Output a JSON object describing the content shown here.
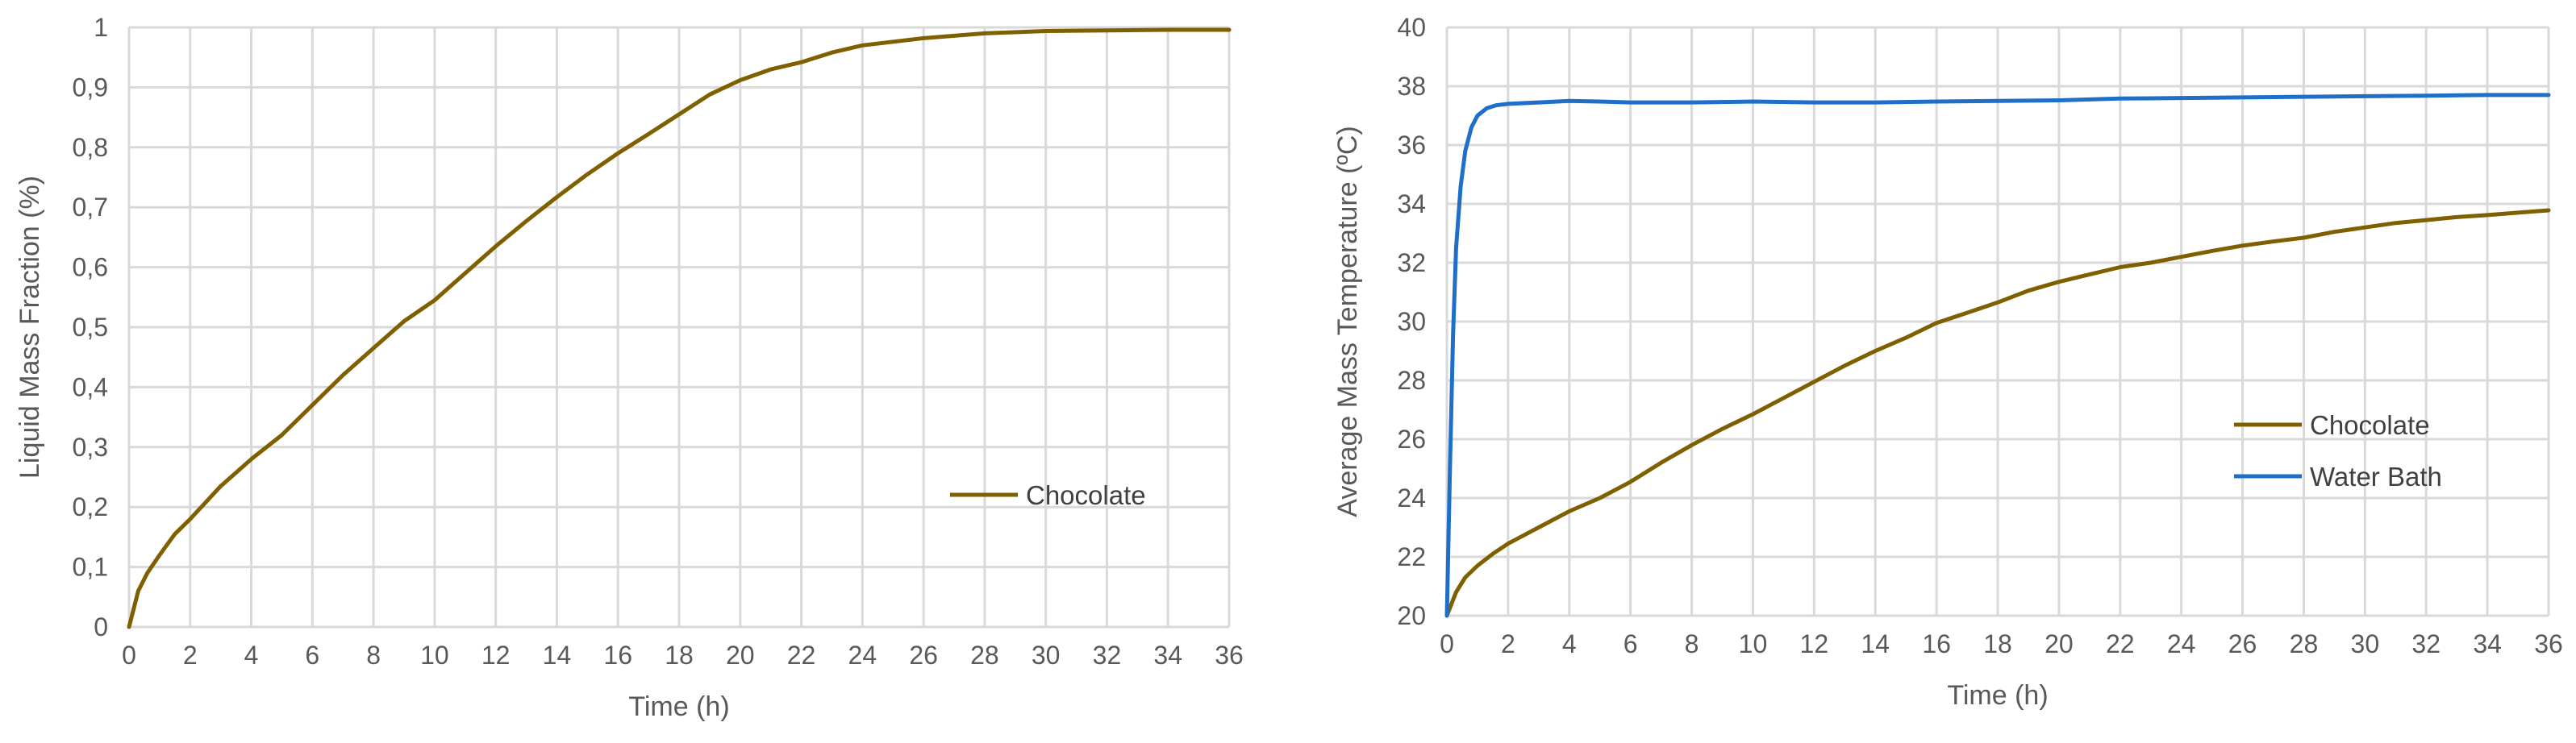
{
  "chart_data": [
    {
      "type": "line",
      "title": "",
      "xlabel": "Time (h)",
      "ylabel": "Liquid Mass Fraction (%)",
      "xlim": [
        0,
        36
      ],
      "ylim": [
        0,
        1
      ],
      "x_ticks": [
        "0",
        "2",
        "4",
        "6",
        "8",
        "10",
        "12",
        "14",
        "16",
        "18",
        "20",
        "22",
        "24",
        "26",
        "28",
        "30",
        "32",
        "34",
        "36"
      ],
      "y_ticks": [
        "0",
        "0,1",
        "0,2",
        "0,3",
        "0,4",
        "0,5",
        "0,6",
        "0,7",
        "0,8",
        "0,9",
        "1"
      ],
      "grid": true,
      "legend_position": "right-middle",
      "series": [
        {
          "name": "Chocolate",
          "color": "#7f6000",
          "x": [
            0,
            0.3,
            0.6,
            1,
            1.5,
            2,
            3,
            4,
            5,
            6,
            7,
            8,
            9,
            10,
            11,
            12,
            13,
            14,
            15,
            16,
            17,
            18,
            19,
            20,
            21,
            22,
            23,
            24,
            26,
            28,
            30,
            32,
            34,
            36
          ],
          "y": [
            0,
            0.06,
            0.09,
            0.12,
            0.155,
            0.18,
            0.235,
            0.28,
            0.32,
            0.37,
            0.42,
            0.465,
            0.51,
            0.545,
            0.59,
            0.635,
            0.677,
            0.717,
            0.755,
            0.79,
            0.822,
            0.855,
            0.888,
            0.912,
            0.93,
            0.942,
            0.958,
            0.97,
            0.982,
            0.99,
            0.994,
            0.995,
            0.996,
            0.996
          ]
        }
      ]
    },
    {
      "type": "line",
      "title": "",
      "xlabel": "Time (h)",
      "ylabel": "Average Mass Temperature (ºC)",
      "xlim": [
        0,
        36
      ],
      "ylim": [
        20,
        40
      ],
      "x_ticks": [
        "0",
        "2",
        "4",
        "6",
        "8",
        "10",
        "12",
        "14",
        "16",
        "18",
        "20",
        "22",
        "24",
        "26",
        "28",
        "30",
        "32",
        "34",
        "36"
      ],
      "y_ticks": [
        "20",
        "22",
        "24",
        "26",
        "28",
        "30",
        "32",
        "34",
        "36",
        "38",
        "40"
      ],
      "grid": true,
      "legend_position": "right-middle",
      "series": [
        {
          "name": "Chocolate",
          "color": "#7f6000",
          "x": [
            0,
            0.3,
            0.6,
            1,
            1.5,
            2,
            3,
            4,
            5,
            6,
            7,
            8,
            9,
            10,
            11,
            12,
            13,
            14,
            15,
            16,
            17,
            18,
            19,
            20,
            21,
            22,
            23,
            24,
            25,
            26,
            27,
            28,
            29,
            30,
            31,
            32,
            33,
            34,
            35,
            36
          ],
          "y": [
            20.0,
            20.8,
            21.3,
            21.7,
            22.1,
            22.45,
            23.0,
            23.55,
            24.0,
            24.55,
            25.2,
            25.8,
            26.35,
            26.85,
            27.4,
            27.95,
            28.5,
            29.0,
            29.45,
            29.95,
            30.3,
            30.65,
            31.05,
            31.35,
            31.6,
            31.85,
            32.0,
            32.2,
            32.4,
            32.58,
            32.72,
            32.85,
            33.05,
            33.2,
            33.35,
            33.45,
            33.55,
            33.62,
            33.7,
            33.78
          ]
        },
        {
          "name": "Water Bath",
          "color": "#1f6fc9",
          "x": [
            0,
            0.1,
            0.2,
            0.3,
            0.45,
            0.6,
            0.8,
            1,
            1.3,
            1.6,
            2,
            3,
            4,
            5,
            6,
            8,
            10,
            12,
            14,
            16,
            18,
            20,
            22,
            24,
            26,
            28,
            30,
            32,
            34,
            36
          ],
          "y": [
            20.0,
            25.0,
            29.5,
            32.5,
            34.6,
            35.8,
            36.6,
            37.0,
            37.25,
            37.35,
            37.4,
            37.45,
            37.5,
            37.48,
            37.45,
            37.45,
            37.48,
            37.45,
            37.45,
            37.48,
            37.5,
            37.52,
            37.58,
            37.6,
            37.62,
            37.64,
            37.66,
            37.68,
            37.7,
            37.7
          ]
        }
      ]
    }
  ]
}
